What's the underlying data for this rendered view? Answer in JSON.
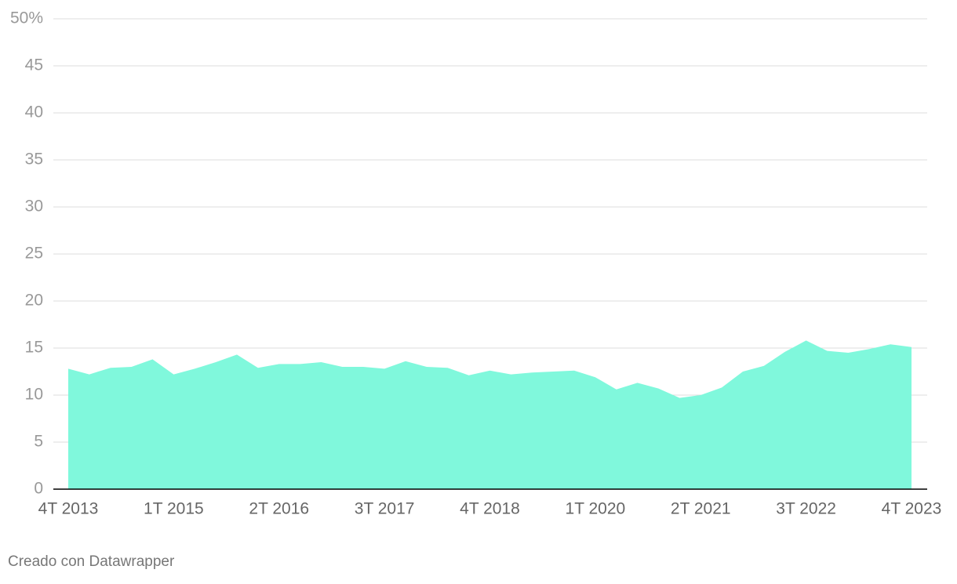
{
  "chart_data": {
    "type": "area",
    "categories": [
      "4T 2013",
      null,
      null,
      null,
      null,
      "1T 2015",
      null,
      null,
      null,
      null,
      "2T 2016",
      null,
      null,
      null,
      null,
      "3T 2017",
      null,
      null,
      null,
      null,
      "4T 2018",
      null,
      null,
      null,
      null,
      "1T 2020",
      null,
      null,
      null,
      null,
      "2T 2021",
      null,
      null,
      null,
      null,
      "3T 2022",
      null,
      null,
      null,
      null,
      "4T 2023"
    ],
    "values": [
      12.8,
      12.2,
      12.9,
      13.0,
      13.8,
      12.2,
      12.8,
      13.5,
      14.3,
      12.9,
      13.3,
      13.3,
      13.5,
      13.0,
      13.0,
      12.8,
      13.6,
      13.0,
      12.9,
      12.1,
      12.6,
      12.2,
      12.4,
      12.5,
      12.6,
      11.9,
      10.6,
      11.3,
      10.7,
      9.7,
      10.0,
      10.8,
      12.5,
      13.1,
      14.6,
      15.8,
      14.7,
      14.5,
      14.9,
      15.4,
      15.1
    ],
    "color": "#80f8dc",
    "ylim": [
      0,
      50
    ],
    "yticks": [
      0,
      5,
      10,
      15,
      20,
      25,
      30,
      35,
      40,
      45,
      {
        "value": 50,
        "label": "50%"
      }
    ],
    "grid": true
  },
  "footer": {
    "credit": "Creado con Datawrapper"
  }
}
